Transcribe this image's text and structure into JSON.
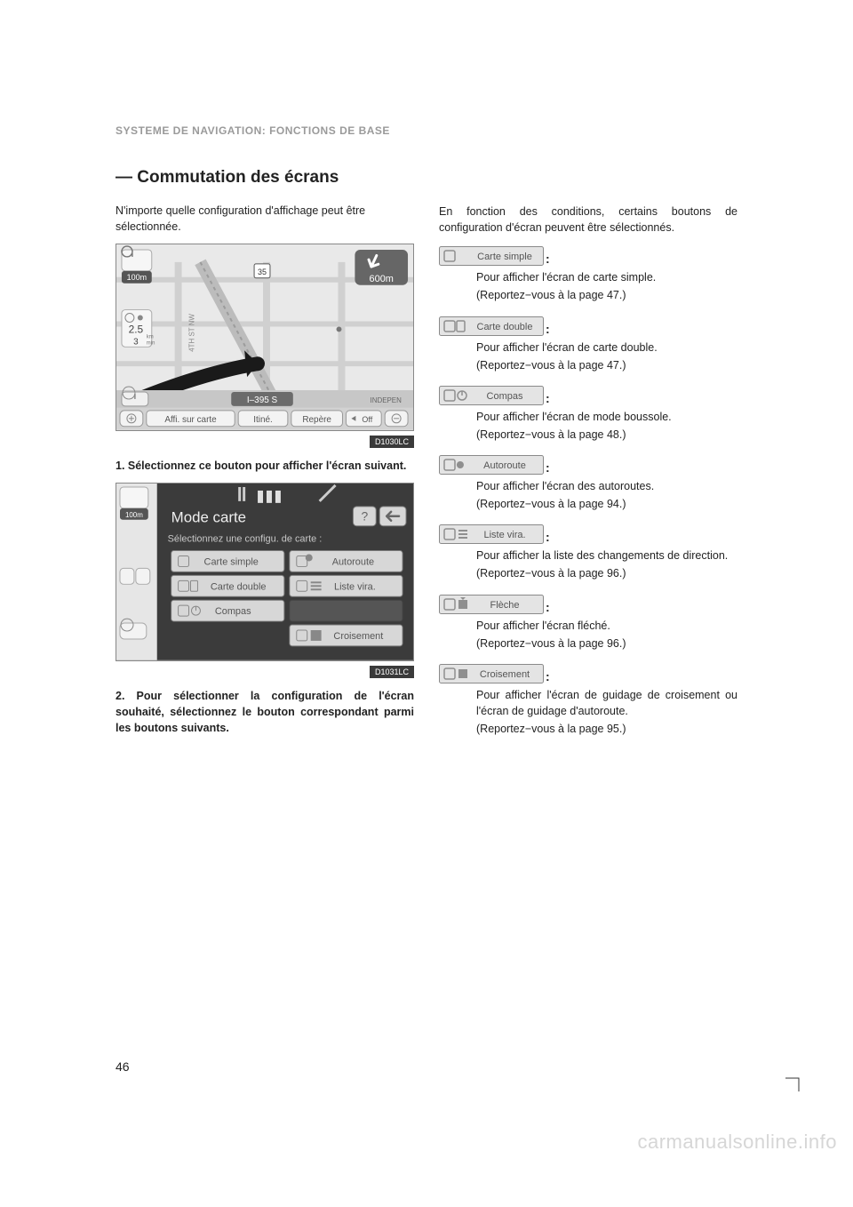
{
  "section_header": "SYSTEME DE NAVIGATION: FONCTIONS DE BASE",
  "heading": "— Commutation des écrans",
  "figures": {
    "fig1": {
      "bg": "#e9e9e9",
      "roads": "#cfcfcf",
      "accent": "#8a8a8a",
      "dark": "#3c3c3c",
      "scale": "100m",
      "dist_top": "600m",
      "dist_left": {
        "km": "2.5",
        "min": "3"
      },
      "street_v": "4TH ST NW",
      "road_label": "I–395 S",
      "right_label": "INDEPEN",
      "buttons": [
        "Affi. sur carte",
        "Itiné.",
        "Repère",
        "Off"
      ],
      "figcode": "D1030LC"
    },
    "fig2": {
      "dark": "#3b3b3b",
      "btn_fill": "#d7d7d7",
      "btn_border": "#7a7a7a",
      "scale": "100m",
      "title": "Mode carte",
      "subtitle": "Sélectionnez une configu. de carte :",
      "left_col": [
        "Carte simple",
        "Carte double",
        "Compas"
      ],
      "right_col": [
        "Autoroute",
        "Liste vira.",
        "",
        "Croisement"
      ],
      "figcode": "D1031LC"
    }
  },
  "left": {
    "intro": "N'importe quelle configuration d'affichage peut être sélectionnée.",
    "step1": "1. Sélectionnez ce bouton pour afficher l'écran suivant.",
    "step2": "2. Pour sélectionner la configuration de l'écran souhaité, sélectionnez le bouton correspondant parmi les boutons suivants."
  },
  "right": {
    "cond": "En fonction des conditions, certains boutons de configuration d'écran peuvent être sélectionnés.",
    "options": [
      {
        "label": "Carte simple",
        "icon": "single",
        "desc": "Pour afficher l'écran de carte simple.",
        "ref": "(Reportez−vous à la page 47.)"
      },
      {
        "label": "Carte double",
        "icon": "double",
        "desc": "Pour afficher l'écran de carte double.",
        "ref": "(Reportez−vous à la page 47.)"
      },
      {
        "label": "Compas",
        "icon": "compass",
        "desc": "Pour afficher l'écran de mode boussole.",
        "ref": "(Reportez−vous à la page 48.)"
      },
      {
        "label": "Autoroute",
        "icon": "highway",
        "desc": "Pour afficher l'écran des autoroutes.",
        "ref": "(Reportez−vous à la page 94.)"
      },
      {
        "label": "Liste vira.",
        "icon": "list",
        "desc": "Pour afficher la liste des changements de direction.",
        "ref": "(Reportez−vous à la page 96.)"
      },
      {
        "label": "Flèche",
        "icon": "arrow",
        "desc": "Pour afficher l'écran fléché.",
        "ref": "(Reportez−vous à la page 96.)"
      },
      {
        "label": "Croisement",
        "icon": "cross",
        "desc": "Pour afficher l'écran de guidage de croisement ou l'écran de guidage d'autoroute.",
        "ref": "(Reportez−vous à la page 95.)"
      }
    ]
  },
  "page_num": "46",
  "watermark": "carmanualsonline.info",
  "colors": {
    "btn_fill": "#e4e4e4",
    "btn_border": "#8a8a8a",
    "btn_text": "#555555",
    "icon_gray": "#8f8f8f"
  }
}
